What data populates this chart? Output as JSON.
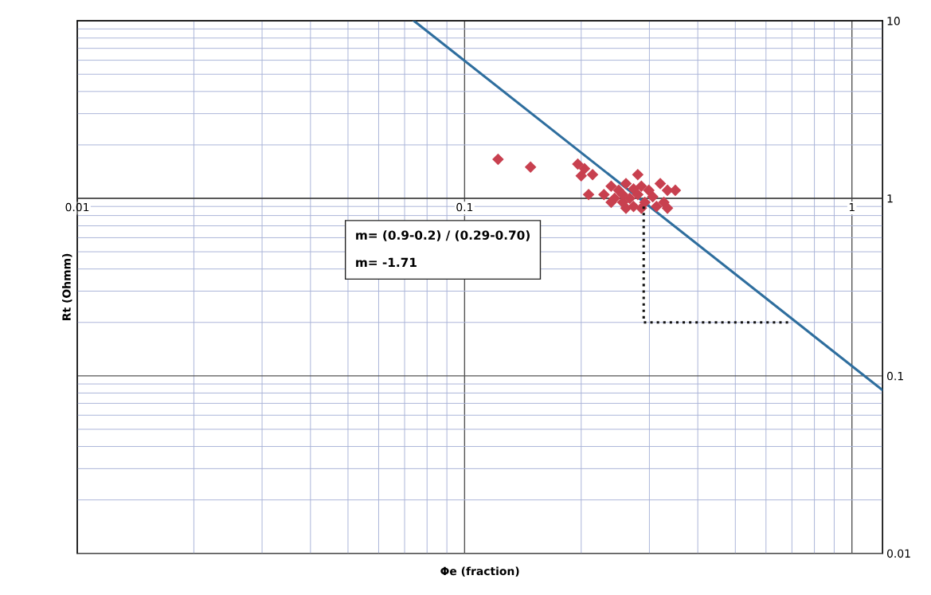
{
  "chart_data": {
    "type": "scatter",
    "xlabel": "Φe (fraction)",
    "ylabel": "Rt (Ohmm)",
    "log": "xy",
    "grid": true,
    "xlim": [
      0.01,
      1.2
    ],
    "ylim": [
      0.01,
      10
    ],
    "xticks": [
      0.01,
      {
        "value": 0.02,
        "label": null
      },
      {
        "value": 0.03,
        "label": null
      },
      {
        "value": 0.04,
        "label": null
      },
      {
        "value": 0.05,
        "label": null
      },
      {
        "value": 0.06,
        "label": null
      },
      {
        "value": 0.07,
        "label": null
      },
      {
        "value": 0.08,
        "label": null
      },
      {
        "value": 0.09,
        "label": null
      },
      0.1,
      {
        "value": 0.2,
        "label": null
      },
      {
        "value": 0.3,
        "label": null
      },
      {
        "value": 0.4,
        "label": null
      },
      {
        "value": 0.5,
        "label": null
      },
      {
        "value": 0.6,
        "label": null
      },
      {
        "value": 0.7,
        "label": null
      },
      {
        "value": 0.8,
        "label": null
      },
      {
        "value": 0.9,
        "label": null
      },
      1
    ],
    "yticks": [
      0.01,
      {
        "value": 0.02,
        "label": null
      },
      {
        "value": 0.03,
        "label": null
      },
      {
        "value": 0.04,
        "label": null
      },
      {
        "value": 0.05,
        "label": null
      },
      {
        "value": 0.06,
        "label": null
      },
      {
        "value": 0.07,
        "label": null
      },
      {
        "value": 0.08,
        "label": null
      },
      {
        "value": 0.09,
        "label": null
      },
      0.1,
      {
        "value": 0.2,
        "label": null
      },
      {
        "value": 0.3,
        "label": null
      },
      {
        "value": 0.4,
        "label": null
      },
      {
        "value": 0.5,
        "label": null
      },
      {
        "value": 0.6,
        "label": null
      },
      {
        "value": 0.7,
        "label": null
      },
      {
        "value": 0.8,
        "label": null
      },
      {
        "value": 0.9,
        "label": null
      },
      1,
      {
        "value": 2,
        "label": null
      },
      {
        "value": 3,
        "label": null
      },
      {
        "value": 4,
        "label": null
      },
      {
        "value": 5,
        "label": null
      },
      {
        "value": 6,
        "label": null
      },
      {
        "value": 7,
        "label": null
      },
      {
        "value": 8,
        "label": null
      },
      {
        "value": 9,
        "label": null
      },
      10
    ],
    "series": [
      {
        "color": "#c8404f",
        "marker": "diamond",
        "x": [
          0.122,
          0.148,
          0.196,
          0.204,
          0.214,
          0.2,
          0.209,
          0.239,
          0.25,
          0.261,
          0.273,
          0.286,
          0.229,
          0.244,
          0.256,
          0.267,
          0.28,
          0.292,
          0.273,
          0.256,
          0.239,
          0.261,
          0.286,
          0.306,
          0.28,
          0.32,
          0.334,
          0.35,
          0.327,
          0.334,
          0.313,
          0.299
        ],
        "values": [
          1.66,
          1.5,
          1.56,
          1.47,
          1.36,
          1.34,
          1.05,
          1.17,
          1.11,
          1.21,
          1.13,
          1.17,
          1.05,
          1.0,
          0.95,
          1.0,
          1.05,
          0.95,
          0.9,
          1.05,
          0.95,
          0.88,
          0.88,
          1.02,
          1.36,
          1.21,
          1.11,
          1.11,
          0.95,
          0.88,
          0.9,
          1.11
        ]
      },
      {
        "type": "line",
        "color": "#2e6e9e",
        "line_style": "solid",
        "marker": "none",
        "x": [
          0.074,
          1.2
        ],
        "values": [
          10,
          0.083
        ]
      },
      {
        "type": "line",
        "color": "#111111",
        "line_style": "dotted",
        "marker": "none",
        "x": [
          0.29,
          0.29,
          0.7
        ],
        "values": [
          0.9,
          0.2,
          0.2
        ]
      }
    ],
    "annotations": [
      "m= (0.9-0.2) / (0.29-0.70)",
      "m= -1.71"
    ]
  }
}
